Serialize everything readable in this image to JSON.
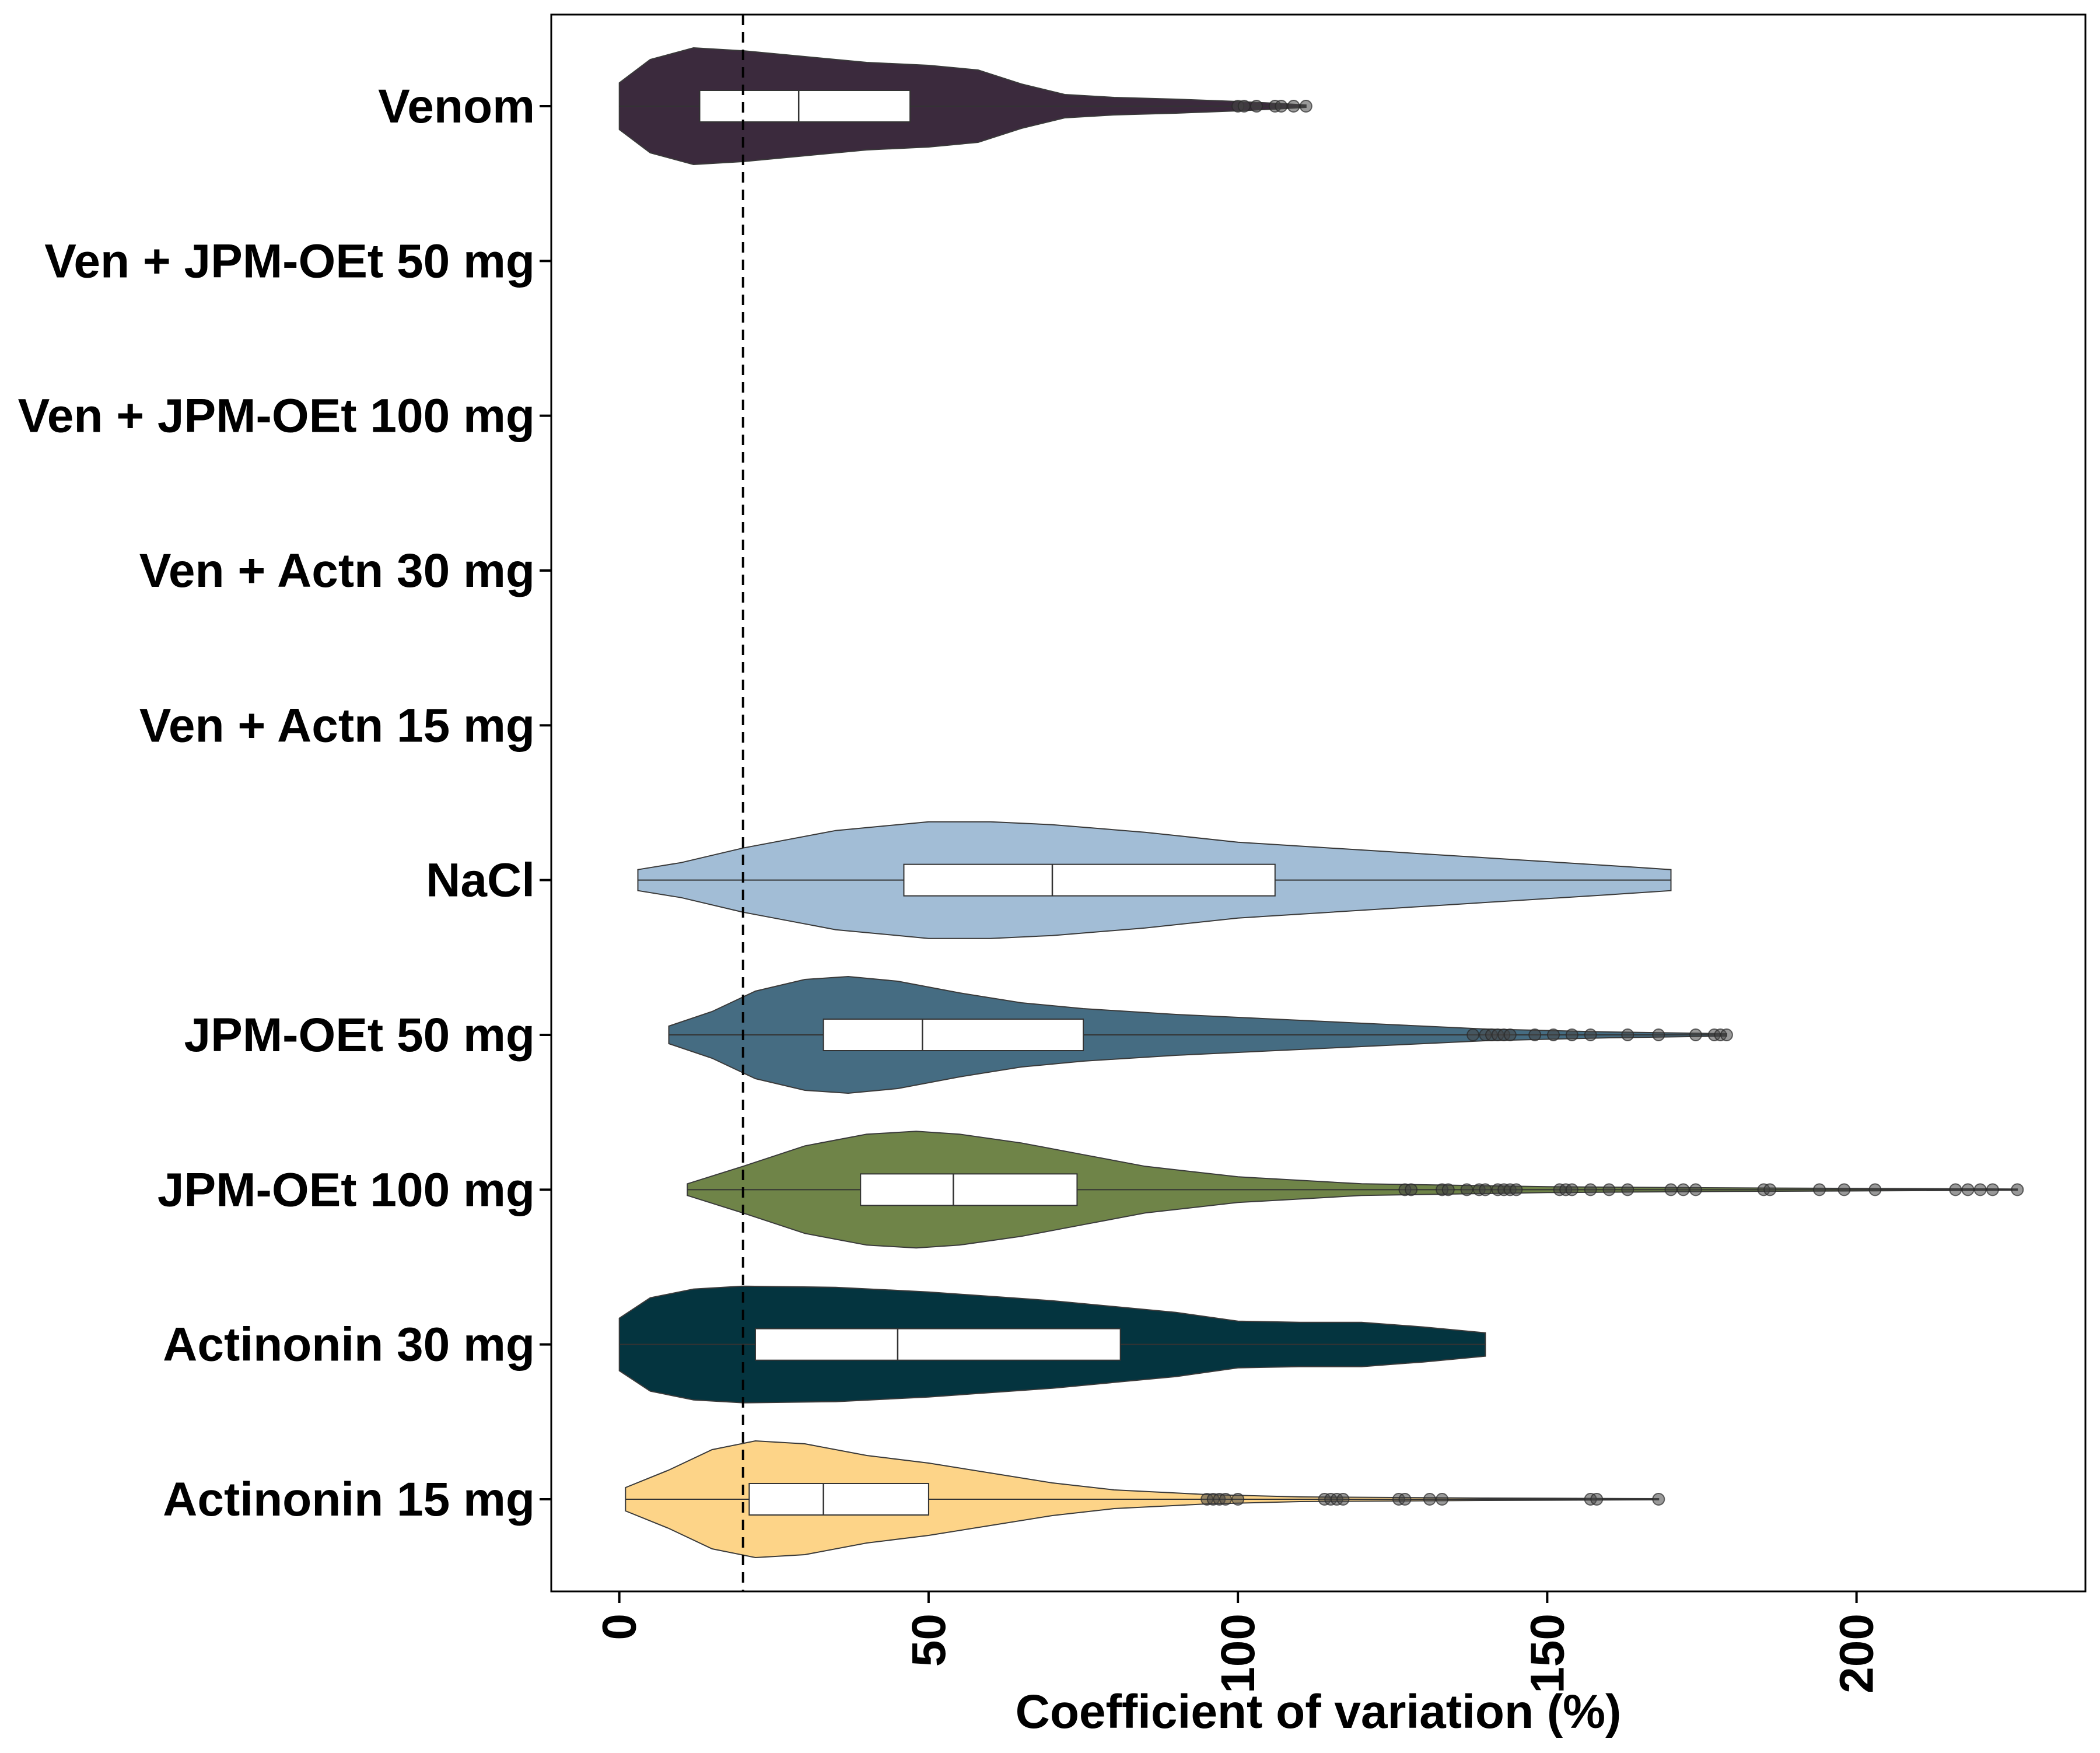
{
  "chart_data": {
    "type": "violin",
    "xlabel": "Coefficient of variation (%)",
    "ylabel": "",
    "xlim": [
      -11,
      237
    ],
    "x_ticks": [
      0,
      50,
      100,
      150,
      200
    ],
    "x_tick_labels": [
      "0",
      "50",
      "100",
      "150",
      "200"
    ],
    "reference_line": {
      "x": 20,
      "style": "dashed"
    },
    "grid": false,
    "categories": [
      "Venom",
      "Ven + JPM-OEt 50 mg",
      "Ven + JPM-OEt 100 mg",
      "Ven + Actn 30 mg",
      "Ven + Actn 15 mg",
      "NaCl",
      "JPM-OEt 50 mg",
      "JPM-OEt 100 mg",
      "Actinonin 30 mg",
      "Actinonin 15 mg"
    ],
    "series": [
      {
        "category": "Venom",
        "color": "#3b2a3d",
        "min": 0,
        "q1": 13,
        "median": 29,
        "q3": 47,
        "max": 111,
        "outliers": [
          100,
          101,
          103,
          106,
          107,
          109,
          111
        ],
        "density": [
          [
            0,
            0.4
          ],
          [
            5,
            0.8
          ],
          [
            12,
            1.0
          ],
          [
            20,
            0.95
          ],
          [
            30,
            0.85
          ],
          [
            40,
            0.75
          ],
          [
            50,
            0.7
          ],
          [
            58,
            0.62
          ],
          [
            65,
            0.38
          ],
          [
            72,
            0.2
          ],
          [
            80,
            0.15
          ],
          [
            90,
            0.12
          ],
          [
            100,
            0.08
          ],
          [
            106,
            0.05
          ],
          [
            111,
            0.02
          ]
        ]
      },
      {
        "category": "Ven + JPM-OEt 50 mg",
        "color": "",
        "points": []
      },
      {
        "category": "Ven + JPM-OEt 100 mg",
        "color": "",
        "points": []
      },
      {
        "category": "Ven + Actn 30 mg",
        "color": "",
        "points": []
      },
      {
        "category": "Ven + Actn 15 mg",
        "color": "",
        "points": []
      },
      {
        "category": "NaCl",
        "color": "#a2bdd6",
        "min": 3,
        "q1": 46,
        "median": 70,
        "q3": 106,
        "max": 170,
        "outliers": [],
        "density": [
          [
            3,
            0.18
          ],
          [
            10,
            0.3
          ],
          [
            20,
            0.55
          ],
          [
            35,
            0.85
          ],
          [
            50,
            1.0
          ],
          [
            60,
            1.0
          ],
          [
            70,
            0.95
          ],
          [
            85,
            0.82
          ],
          [
            100,
            0.65
          ],
          [
            115,
            0.55
          ],
          [
            130,
            0.45
          ],
          [
            145,
            0.35
          ],
          [
            160,
            0.25
          ],
          [
            170,
            0.18
          ]
        ]
      },
      {
        "category": "JPM-OEt 50 mg",
        "color": "#456c82",
        "min": 8,
        "q1": 33,
        "median": 49,
        "q3": 75,
        "max": 179,
        "outliers": [
          138,
          140,
          141,
          142,
          143,
          144,
          148,
          151,
          154,
          157,
          163,
          168,
          174,
          177,
          178,
          179
        ],
        "density": [
          [
            8,
            0.15
          ],
          [
            15,
            0.4
          ],
          [
            22,
            0.75
          ],
          [
            30,
            0.95
          ],
          [
            37,
            1.0
          ],
          [
            45,
            0.92
          ],
          [
            55,
            0.72
          ],
          [
            65,
            0.55
          ],
          [
            75,
            0.45
          ],
          [
            90,
            0.35
          ],
          [
            110,
            0.25
          ],
          [
            130,
            0.15
          ],
          [
            140,
            0.1
          ],
          [
            160,
            0.05
          ],
          [
            179,
            0.02
          ]
        ]
      },
      {
        "category": "JPM-OEt 100 mg",
        "color": "#6f8448",
        "min": 11,
        "q1": 39,
        "median": 54,
        "q3": 74,
        "max": 226,
        "outliers": [
          127,
          128,
          133,
          134,
          137,
          139,
          140,
          142,
          143,
          144,
          145,
          152,
          153,
          154,
          157,
          160,
          163,
          170,
          172,
          174,
          185,
          186,
          194,
          198,
          203,
          216,
          218,
          220,
          222,
          226
        ],
        "density": [
          [
            11,
            0.1
          ],
          [
            20,
            0.4
          ],
          [
            30,
            0.75
          ],
          [
            40,
            0.95
          ],
          [
            48,
            1.0
          ],
          [
            55,
            0.95
          ],
          [
            65,
            0.8
          ],
          [
            75,
            0.6
          ],
          [
            85,
            0.4
          ],
          [
            100,
            0.22
          ],
          [
            120,
            0.1
          ],
          [
            150,
            0.05
          ],
          [
            180,
            0.03
          ],
          [
            226,
            0.01
          ]
        ]
      },
      {
        "category": "Actinonin 30 mg",
        "color": "#04343f",
        "min": 0,
        "q1": 22,
        "median": 45,
        "q3": 81,
        "max": 140,
        "outliers": [],
        "density": [
          [
            0,
            0.45
          ],
          [
            5,
            0.8
          ],
          [
            12,
            0.95
          ],
          [
            20,
            1.0
          ],
          [
            35,
            0.98
          ],
          [
            50,
            0.9
          ],
          [
            70,
            0.75
          ],
          [
            90,
            0.55
          ],
          [
            100,
            0.4
          ],
          [
            110,
            0.38
          ],
          [
            120,
            0.38
          ],
          [
            130,
            0.3
          ],
          [
            140,
            0.2
          ]
        ]
      },
      {
        "category": "Actinonin 15 mg",
        "color": "#fdd488",
        "min": 1,
        "q1": 21,
        "median": 33,
        "q3": 50,
        "max": 168,
        "outliers": [
          95,
          96,
          97,
          98,
          100,
          114,
          115,
          116,
          117,
          126,
          127,
          131,
          133,
          157,
          158,
          168
        ],
        "density": [
          [
            1,
            0.2
          ],
          [
            8,
            0.5
          ],
          [
            15,
            0.85
          ],
          [
            22,
            1.0
          ],
          [
            30,
            0.95
          ],
          [
            40,
            0.75
          ],
          [
            50,
            0.62
          ],
          [
            60,
            0.45
          ],
          [
            70,
            0.28
          ],
          [
            80,
            0.16
          ],
          [
            95,
            0.08
          ],
          [
            110,
            0.04
          ],
          [
            140,
            0.02
          ],
          [
            168,
            0.01
          ]
        ]
      }
    ]
  }
}
